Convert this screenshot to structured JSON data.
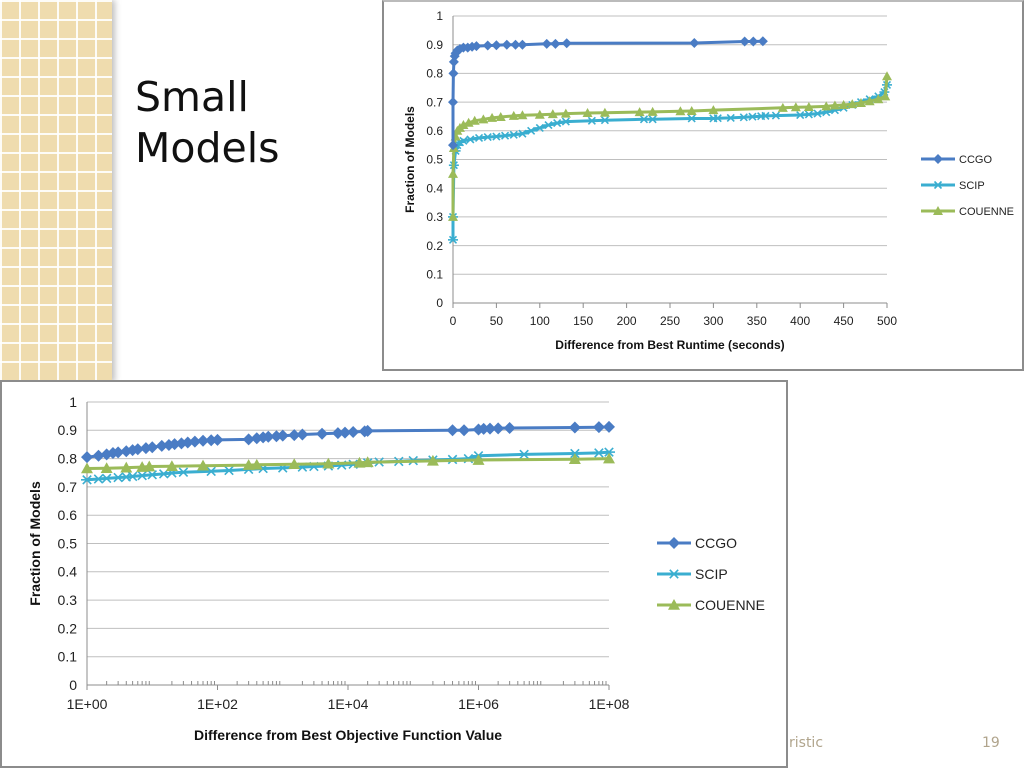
{
  "slide": {
    "title_lines": [
      "Small",
      "Models"
    ],
    "footer_text": "ristic",
    "page_number": "19",
    "colors": {
      "ccgo": "#4a7cc4",
      "scip": "#3aaed0",
      "couenne": "#9bbb59",
      "grid": "#bfbfbf",
      "axis": "#8c8c8c",
      "side_pattern": "#efdcae"
    }
  },
  "chart_data": [
    {
      "type": "line",
      "id": "runtime",
      "title": "",
      "xlabel": "Difference from Best Runtime (seconds)",
      "ylabel": "Fraction of Models",
      "xscale": "linear",
      "xlim": [
        0,
        500
      ],
      "ylim": [
        0,
        1
      ],
      "xticks": [
        0,
        50,
        100,
        150,
        200,
        250,
        300,
        350,
        400,
        450,
        500
      ],
      "xtick_labels": [
        "0",
        "50",
        "100",
        "150",
        "200",
        "250",
        "300",
        "350",
        "400",
        "450",
        "500"
      ],
      "yticks": [
        0,
        0.1,
        0.2,
        0.3,
        0.4,
        0.5,
        0.6,
        0.7,
        0.8,
        0.9,
        1
      ],
      "ytick_labels": [
        "0",
        "0.1",
        "0.2",
        "0.3",
        "0.4",
        "0.5",
        "0.6",
        "0.7",
        "0.8",
        "0.9",
        "1"
      ],
      "grid": true,
      "legend": "right",
      "series": [
        {
          "name": "CCGO",
          "marker": "diamond",
          "x": [
            0,
            0,
            0.5,
            1,
            2,
            3,
            5,
            8,
            12,
            17,
            22,
            27,
            40,
            50,
            62,
            72,
            80,
            108,
            118,
            131,
            278,
            336,
            346,
            357
          ],
          "y": [
            0.55,
            0.7,
            0.8,
            0.84,
            0.86,
            0.87,
            0.88,
            0.885,
            0.89,
            0.89,
            0.893,
            0.895,
            0.897,
            0.898,
            0.9,
            0.9,
            0.9,
            0.903,
            0.903,
            0.905,
            0.906,
            0.911,
            0.911,
            0.912
          ]
        },
        {
          "name": "SCIP",
          "marker": "asterisk",
          "x": [
            0,
            0,
            1,
            3,
            5,
            8,
            12,
            20,
            30,
            40,
            50,
            60,
            70,
            80,
            90,
            100,
            110,
            120,
            130,
            160,
            175,
            220,
            230,
            275,
            300,
            305,
            320,
            335,
            345,
            355,
            360,
            372,
            400,
            410,
            420,
            430,
            440,
            450,
            460,
            470,
            480,
            490,
            497,
            500
          ],
          "y": [
            0.22,
            0.3,
            0.48,
            0.53,
            0.55,
            0.56,
            0.565,
            0.57,
            0.575,
            0.578,
            0.58,
            0.583,
            0.586,
            0.59,
            0.6,
            0.61,
            0.62,
            0.627,
            0.632,
            0.635,
            0.637,
            0.64,
            0.64,
            0.643,
            0.643,
            0.644,
            0.645,
            0.647,
            0.649,
            0.651,
            0.652,
            0.653,
            0.655,
            0.657,
            0.66,
            0.665,
            0.672,
            0.68,
            0.69,
            0.7,
            0.71,
            0.72,
            0.735,
            0.76
          ]
        },
        {
          "name": "COUENNE",
          "marker": "triangle",
          "x": [
            0,
            0,
            1,
            3,
            5,
            8,
            12,
            18,
            25,
            35,
            45,
            55,
            70,
            80,
            100,
            115,
            130,
            155,
            175,
            215,
            230,
            262,
            275,
            300,
            380,
            395,
            410,
            430,
            440,
            450,
            460,
            470,
            480,
            490,
            498,
            500
          ],
          "y": [
            0.3,
            0.45,
            0.54,
            0.58,
            0.6,
            0.61,
            0.62,
            0.628,
            0.635,
            0.64,
            0.645,
            0.648,
            0.652,
            0.654,
            0.656,
            0.658,
            0.66,
            0.662,
            0.663,
            0.665,
            0.666,
            0.668,
            0.669,
            0.672,
            0.68,
            0.682,
            0.683,
            0.685,
            0.688,
            0.69,
            0.693,
            0.697,
            0.703,
            0.71,
            0.72,
            0.79
          ]
        }
      ]
    },
    {
      "type": "line",
      "id": "objective",
      "title": "",
      "xlabel": "Difference from Best Objective Function Value",
      "ylabel": "Fraction of Models",
      "xscale": "log",
      "xlim": [
        1,
        100000000
      ],
      "ylim": [
        0,
        1
      ],
      "xticks": [
        1,
        100,
        10000,
        1000000,
        100000000
      ],
      "xtick_labels": [
        "1E+00",
        "1E+02",
        "1E+04",
        "1E+06",
        "1E+08"
      ],
      "yticks": [
        0,
        0.1,
        0.2,
        0.3,
        0.4,
        0.5,
        0.6,
        0.7,
        0.8,
        0.9,
        1
      ],
      "ytick_labels": [
        "0",
        "0.1",
        "0.2",
        "0.3",
        "0.4",
        "0.5",
        "0.6",
        "0.7",
        "0.8",
        "0.9",
        "1"
      ],
      "grid": true,
      "legend": "right",
      "series": [
        {
          "name": "CCGO",
          "marker": "diamond",
          "x": [
            1,
            1.5,
            2,
            2.5,
            3,
            4,
            5,
            6,
            8,
            10,
            14,
            18,
            22,
            28,
            35,
            45,
            60,
            80,
            100,
            300,
            400,
            500,
            600,
            800,
            1000,
            1500,
            2000,
            4000,
            7000,
            9000,
            12000,
            18000,
            20000,
            400000,
            600000,
            1000000,
            1200000,
            1500000,
            2000000,
            3000000,
            30000000,
            70000000,
            100000000
          ],
          "y": [
            0.805,
            0.81,
            0.815,
            0.82,
            0.822,
            0.826,
            0.83,
            0.833,
            0.837,
            0.84,
            0.845,
            0.848,
            0.851,
            0.854,
            0.857,
            0.86,
            0.863,
            0.865,
            0.866,
            0.868,
            0.872,
            0.875,
            0.877,
            0.879,
            0.881,
            0.883,
            0.885,
            0.888,
            0.89,
            0.892,
            0.894,
            0.896,
            0.898,
            0.9,
            0.9,
            0.903,
            0.905,
            0.906,
            0.907,
            0.908,
            0.91,
            0.911,
            0.912
          ]
        },
        {
          "name": "SCIP",
          "marker": "asterisk",
          "x": [
            1,
            1.5,
            2,
            3,
            4,
            5,
            7,
            10,
            15,
            20,
            30,
            80,
            150,
            300,
            500,
            1000,
            2000,
            3000,
            5000,
            8000,
            12000,
            20000,
            30000,
            60000,
            100000,
            200000,
            400000,
            700000,
            1000000,
            5000000,
            30000000,
            70000000,
            100000000
          ],
          "y": [
            0.725,
            0.728,
            0.73,
            0.733,
            0.735,
            0.737,
            0.74,
            0.743,
            0.746,
            0.749,
            0.752,
            0.755,
            0.758,
            0.762,
            0.765,
            0.767,
            0.77,
            0.772,
            0.774,
            0.777,
            0.78,
            0.785,
            0.788,
            0.79,
            0.793,
            0.795,
            0.797,
            0.8,
            0.81,
            0.815,
            0.818,
            0.82,
            0.823
          ]
        },
        {
          "name": "COUENNE",
          "marker": "triangle",
          "x": [
            1,
            2,
            4,
            7,
            9,
            20,
            60,
            300,
            400,
            1500,
            5000,
            15000,
            20000,
            200000,
            1000000,
            30000000,
            100000000
          ],
          "y": [
            0.765,
            0.766,
            0.768,
            0.77,
            0.772,
            0.773,
            0.775,
            0.777,
            0.778,
            0.78,
            0.782,
            0.785,
            0.787,
            0.792,
            0.795,
            0.798,
            0.8
          ]
        }
      ]
    }
  ]
}
